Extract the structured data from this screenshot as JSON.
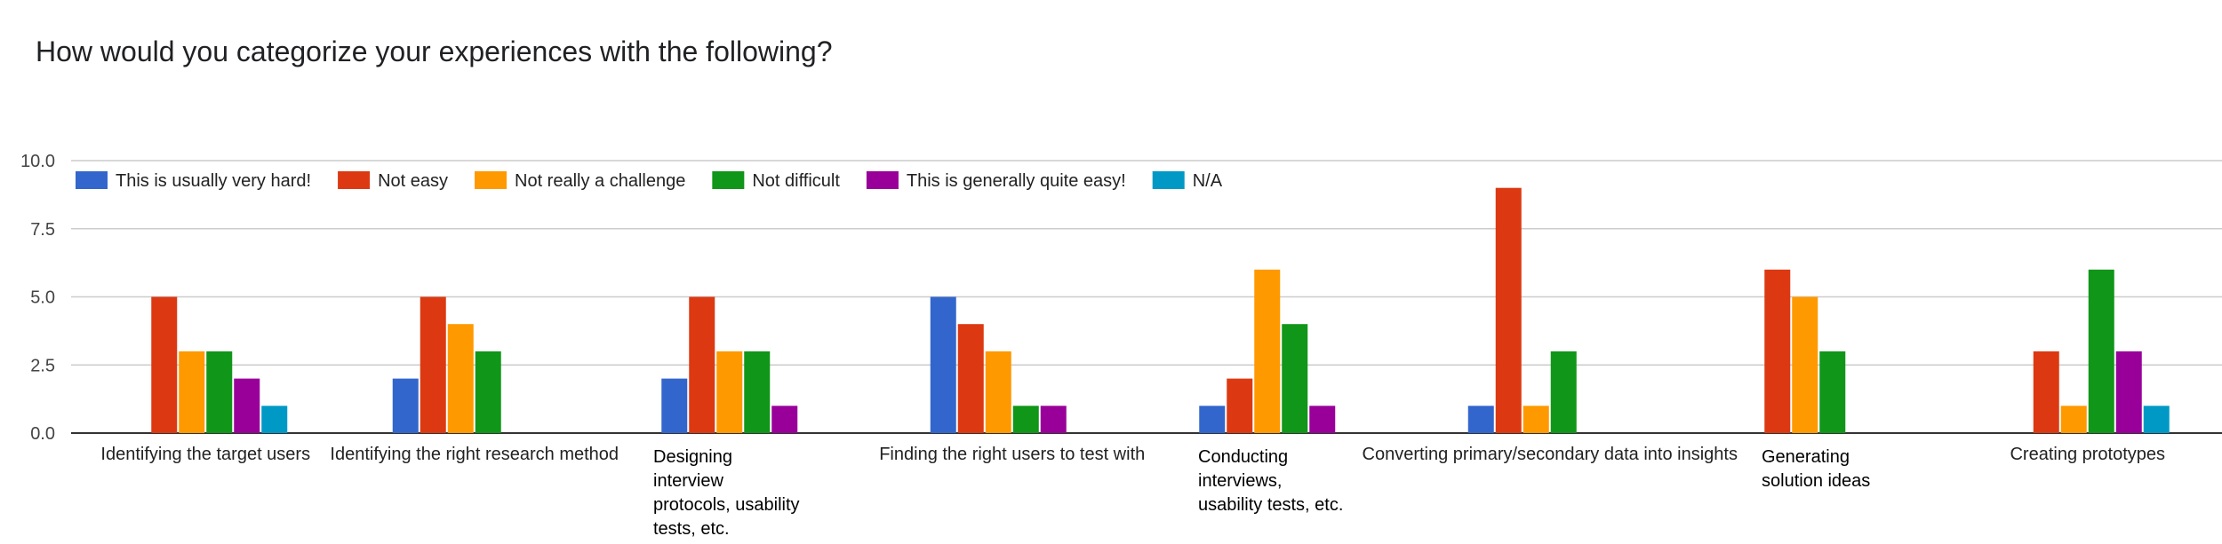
{
  "chart_data": {
    "type": "bar",
    "title": "How would you categorize your experiences with the following?",
    "ylim": [
      0,
      10
    ],
    "yticks": [
      "0.0",
      "2.5",
      "5.0",
      "7.5",
      "10.0"
    ],
    "legend_position": "top-left",
    "grid": true,
    "categories": [
      "Identifying the target users",
      "Identifying the right research method",
      "Designing interview protocols, usability tests, etc.",
      "Finding the right users to test with",
      "Conducting interviews, usability tests, etc.",
      "Converting primary/secondary data into insights",
      "Generating solution ideas",
      "Creating prototypes"
    ],
    "series": [
      {
        "name": "This is usually very hard!",
        "color": "#3366cc",
        "values": [
          0,
          2,
          2,
          5,
          1,
          1,
          0,
          0
        ]
      },
      {
        "name": "Not easy",
        "color": "#dc3912",
        "values": [
          5,
          5,
          5,
          4,
          2,
          9,
          6,
          3
        ]
      },
      {
        "name": "Not really a challenge",
        "color": "#ff9900",
        "values": [
          3,
          4,
          3,
          3,
          6,
          1,
          5,
          1
        ]
      },
      {
        "name": "Not difficult",
        "color": "#109618",
        "values": [
          3,
          3,
          3,
          1,
          4,
          3,
          3,
          6
        ]
      },
      {
        "name": "This is generally quite easy!",
        "color": "#990099",
        "values": [
          2,
          0,
          1,
          1,
          1,
          0,
          0,
          3
        ]
      },
      {
        "name": "N/A",
        "color": "#0099c6",
        "values": [
          1,
          0,
          0,
          0,
          0,
          0,
          0,
          1
        ]
      }
    ]
  }
}
